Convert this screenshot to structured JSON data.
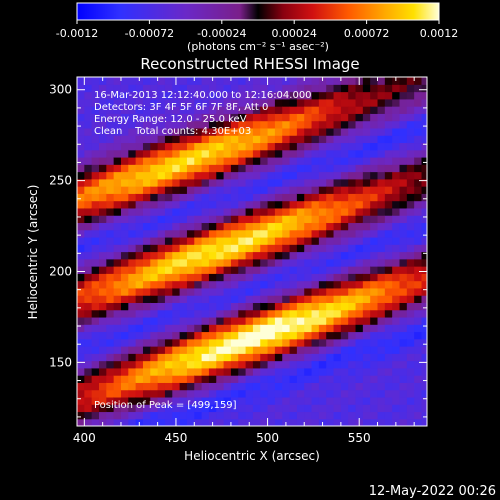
{
  "chart_data": {
    "type": "heatmap",
    "title": "Reconstructed RHESSI Image",
    "xlabel": "Heliocentric X (arcsec)",
    "ylabel": "Heliocentric Y (arcsec)",
    "xlim": [
      396,
      587
    ],
    "ylim": [
      115,
      307
    ],
    "xticks": [
      400,
      450,
      500,
      550
    ],
    "yticks": [
      150,
      200,
      250,
      300
    ],
    "colorbar": {
      "range": [
        -0.0012,
        0.0012
      ],
      "ticks": [
        "-0.0012",
        "-0.00072",
        "-0.00024",
        "0.00024",
        "0.00072",
        "0.0012"
      ],
      "unit_label": "(photons cm⁻² s⁻¹ asec⁻²)",
      "colormap_stops": [
        {
          "v": 0.0,
          "color": "#0000ff"
        },
        {
          "v": 0.12,
          "color": "#3030ff"
        },
        {
          "v": 0.3,
          "color": "#6a28c8"
        },
        {
          "v": 0.45,
          "color": "#7a1f8a"
        },
        {
          "v": 0.5,
          "color": "#000000"
        },
        {
          "v": 0.57,
          "color": "#8a0010"
        },
        {
          "v": 0.65,
          "color": "#d01010"
        },
        {
          "v": 0.75,
          "color": "#ff5a00"
        },
        {
          "v": 0.85,
          "color": "#ffa800"
        },
        {
          "v": 0.93,
          "color": "#ffe000"
        },
        {
          "v": 1.0,
          "color": "#ffffd8"
        }
      ]
    },
    "annotations": [
      "16-Mar-2013 12:12:40.000 to 12:16:04.000",
      "Detectors: 3F 4F 5F 6F 7F 8F, Att 0",
      "Energy Range: 12.0 - 25.0 keV",
      "Clean    Total counts: 4.30E+03"
    ],
    "peak_label": "Position of Peak = [499,159]",
    "peak_position": [
      499,
      159
    ],
    "stripe_model": {
      "stripe_slope": 0.35,
      "stripe_spacing_arcsec": 55,
      "bright_band_offsets_arcsec": [
        15,
        70,
        125
      ],
      "dark_band_offsets_arcsec": [
        -12,
        42,
        97
      ],
      "bright_amplitudes": [
        0.0012,
        0.0011,
        0.00105
      ],
      "grid_step_arcsec": 4
    }
  },
  "footer": {
    "timestamp": "12-May-2022 00:26"
  }
}
